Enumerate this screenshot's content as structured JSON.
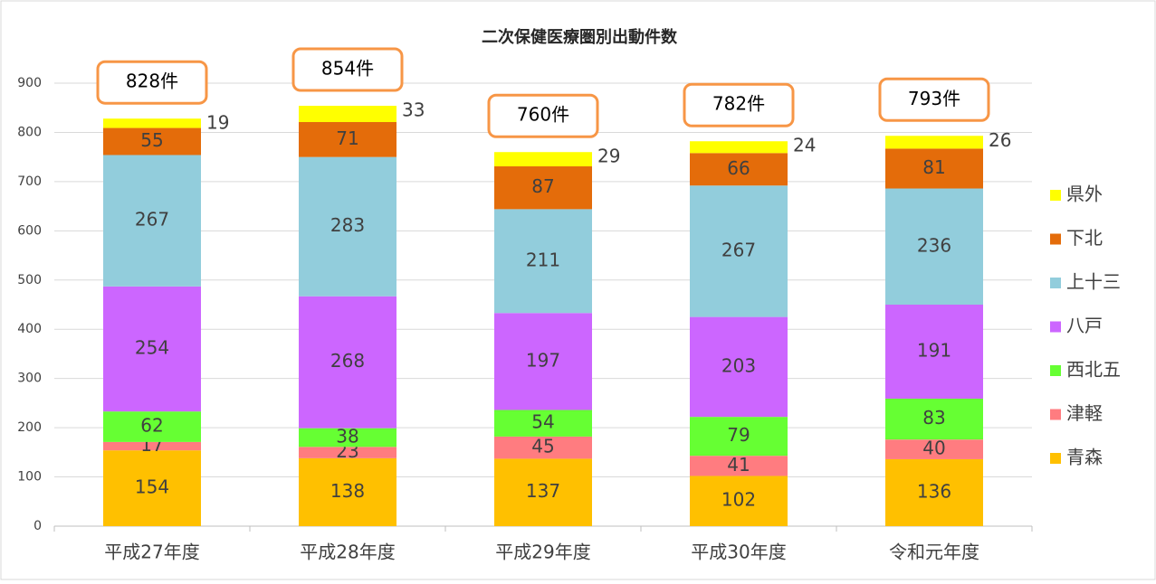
{
  "chart_data": {
    "type": "stacked_bar",
    "title": "二次保健医療圏別出動件数",
    "categories": [
      "平成27年度",
      "平成28年度",
      "平成29年度",
      "平成30年度",
      "令和元年度"
    ],
    "series": [
      {
        "name": "青森",
        "color": "#ffc000",
        "values": [
          154,
          138,
          137,
          102,
          136
        ]
      },
      {
        "name": "津軽",
        "color": "#ff7c80",
        "values": [
          17,
          23,
          45,
          41,
          40
        ]
      },
      {
        "name": "西北五",
        "color": "#66ff33",
        "values": [
          62,
          38,
          54,
          79,
          83
        ]
      },
      {
        "name": "八戸",
        "color": "#cc66ff",
        "values": [
          254,
          268,
          197,
          203,
          191
        ]
      },
      {
        "name": "上十三",
        "color": "#92cddc",
        "values": [
          267,
          283,
          211,
          267,
          236
        ]
      },
      {
        "name": "下北",
        "color": "#e46c0a",
        "values": [
          55,
          71,
          87,
          66,
          81
        ]
      },
      {
        "name": "県外",
        "color": "#ffff00",
        "values": [
          19,
          33,
          29,
          24,
          26
        ]
      }
    ],
    "annotations": [
      "828件",
      "854件",
      "760件",
      "782件",
      "793件"
    ],
    "ylim": [
      0,
      900
    ],
    "yticks": [
      0,
      100,
      200,
      300,
      400,
      500,
      600,
      700,
      800,
      900
    ],
    "grid": true,
    "legend": "right"
  }
}
